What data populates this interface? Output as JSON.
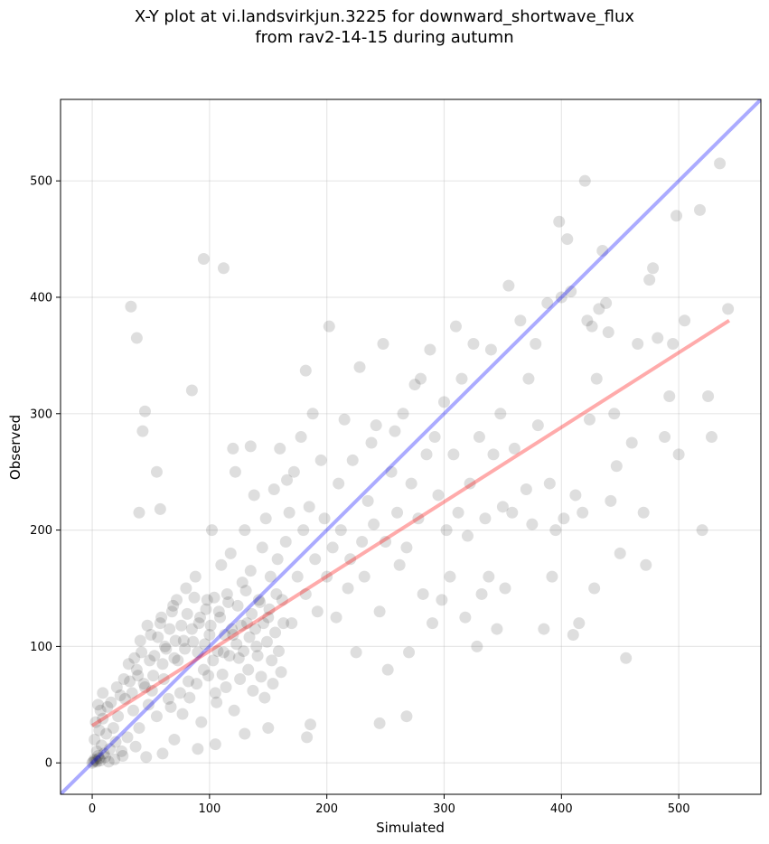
{
  "chart_data": {
    "type": "scatter",
    "title_line1": "X-Y plot at vi.landsvirkjun.3225 for downward_shortwave_flux",
    "title_line2": "from rav2-14-15 during autumn",
    "xlabel": "Simulated",
    "ylabel": "Observed",
    "xlim": [
      -27,
      570
    ],
    "ylim": [
      -27,
      570
    ],
    "xticks": [
      0,
      100,
      200,
      300,
      400,
      500
    ],
    "yticks": [
      0,
      100,
      200,
      300,
      400,
      500
    ],
    "grid": true,
    "colors": {
      "points": "#000000",
      "one_to_one": "#0000ff",
      "fit": "#ff0000"
    },
    "one_to_one_line": {
      "slope": 1,
      "intercept": 0
    },
    "fit_line": {
      "x": [
        0,
        543
      ],
      "y": [
        32,
        380
      ]
    },
    "points": [
      [
        0,
        0
      ],
      [
        1,
        1
      ],
      [
        2,
        3
      ],
      [
        3,
        2
      ],
      [
        5,
        6
      ],
      [
        4,
        10
      ],
      [
        6,
        4
      ],
      [
        8,
        15
      ],
      [
        2,
        20
      ],
      [
        10,
        8
      ],
      [
        12,
        25
      ],
      [
        15,
        12
      ],
      [
        3,
        35
      ],
      [
        18,
        30
      ],
      [
        20,
        18
      ],
      [
        22,
        40
      ],
      [
        25,
        10
      ],
      [
        5,
        50
      ],
      [
        7,
        45
      ],
      [
        9,
        60
      ],
      [
        28,
        55
      ],
      [
        30,
        22
      ],
      [
        32,
        70
      ],
      [
        35,
        45
      ],
      [
        38,
        80
      ],
      [
        40,
        30
      ],
      [
        42,
        95
      ],
      [
        45,
        65
      ],
      [
        48,
        50
      ],
      [
        50,
        110
      ],
      [
        52,
        75
      ],
      [
        55,
        40
      ],
      [
        58,
        120
      ],
      [
        60,
        85
      ],
      [
        62,
        100
      ],
      [
        65,
        55
      ],
      [
        68,
        130
      ],
      [
        70,
        90
      ],
      [
        72,
        140
      ],
      [
        75,
        60
      ],
      [
        78,
        105
      ],
      [
        80,
        150
      ],
      [
        82,
        70
      ],
      [
        85,
        115
      ],
      [
        88,
        160
      ],
      [
        90,
        95
      ],
      [
        92,
        125
      ],
      [
        95,
        80
      ],
      [
        98,
        140
      ],
      [
        100,
        110
      ],
      [
        102,
        200
      ],
      [
        105,
        60
      ],
      [
        108,
        130
      ],
      [
        110,
        170
      ],
      [
        112,
        95
      ],
      [
        115,
        145
      ],
      [
        118,
        180
      ],
      [
        120,
        110
      ],
      [
        122,
        250
      ],
      [
        125,
        90
      ],
      [
        128,
        155
      ],
      [
        130,
        200
      ],
      [
        132,
        120
      ],
      [
        135,
        165
      ],
      [
        138,
        230
      ],
      [
        140,
        100
      ],
      [
        142,
        140
      ],
      [
        145,
        185
      ],
      [
        148,
        210
      ],
      [
        150,
        125
      ],
      [
        152,
        160
      ],
      [
        155,
        235
      ],
      [
        158,
        175
      ],
      [
        160,
        270
      ],
      [
        162,
        140
      ],
      [
        165,
        190
      ],
      [
        168,
        215
      ],
      [
        170,
        120
      ],
      [
        172,
        250
      ],
      [
        175,
        160
      ],
      [
        178,
        280
      ],
      [
        180,
        200
      ],
      [
        182,
        145
      ],
      [
        185,
        220
      ],
      [
        188,
        300
      ],
      [
        190,
        175
      ],
      [
        192,
        130
      ],
      [
        195,
        260
      ],
      [
        198,
        210
      ],
      [
        200,
        160
      ],
      [
        202,
        375
      ],
      [
        205,
        185
      ],
      [
        208,
        125
      ],
      [
        210,
        240
      ],
      [
        212,
        200
      ],
      [
        215,
        295
      ],
      [
        218,
        150
      ],
      [
        220,
        175
      ],
      [
        222,
        260
      ],
      [
        225,
        95
      ],
      [
        228,
        340
      ],
      [
        230,
        190
      ],
      [
        232,
        160
      ],
      [
        235,
        225
      ],
      [
        238,
        275
      ],
      [
        240,
        205
      ],
      [
        242,
        290
      ],
      [
        245,
        130
      ],
      [
        248,
        360
      ],
      [
        250,
        190
      ],
      [
        252,
        80
      ],
      [
        255,
        250
      ],
      [
        258,
        285
      ],
      [
        260,
        215
      ],
      [
        262,
        170
      ],
      [
        265,
        300
      ],
      [
        268,
        185
      ],
      [
        270,
        95
      ],
      [
        272,
        240
      ],
      [
        275,
        325
      ],
      [
        278,
        210
      ],
      [
        280,
        330
      ],
      [
        282,
        145
      ],
      [
        285,
        265
      ],
      [
        288,
        355
      ],
      [
        290,
        120
      ],
      [
        292,
        280
      ],
      [
        295,
        230
      ],
      [
        298,
        140
      ],
      [
        300,
        310
      ],
      [
        302,
        200
      ],
      [
        305,
        160
      ],
      [
        308,
        265
      ],
      [
        310,
        375
      ],
      [
        312,
        215
      ],
      [
        315,
        330
      ],
      [
        318,
        125
      ],
      [
        320,
        195
      ],
      [
        322,
        240
      ],
      [
        325,
        360
      ],
      [
        328,
        100
      ],
      [
        330,
        280
      ],
      [
        332,
        145
      ],
      [
        335,
        210
      ],
      [
        338,
        160
      ],
      [
        340,
        355
      ],
      [
        342,
        265
      ],
      [
        345,
        115
      ],
      [
        348,
        300
      ],
      [
        350,
        220
      ],
      [
        352,
        150
      ],
      [
        355,
        410
      ],
      [
        358,
        215
      ],
      [
        360,
        270
      ],
      [
        365,
        380
      ],
      [
        370,
        235
      ],
      [
        372,
        330
      ],
      [
        375,
        205
      ],
      [
        378,
        360
      ],
      [
        380,
        290
      ],
      [
        385,
        115
      ],
      [
        388,
        395
      ],
      [
        390,
        240
      ],
      [
        392,
        160
      ],
      [
        395,
        200
      ],
      [
        398,
        465
      ],
      [
        400,
        400
      ],
      [
        402,
        210
      ],
      [
        405,
        450
      ],
      [
        408,
        405
      ],
      [
        410,
        110
      ],
      [
        412,
        230
      ],
      [
        415,
        120
      ],
      [
        418,
        215
      ],
      [
        420,
        500
      ],
      [
        422,
        380
      ],
      [
        424,
        295
      ],
      [
        426,
        375
      ],
      [
        428,
        150
      ],
      [
        430,
        330
      ],
      [
        432,
        390
      ],
      [
        435,
        440
      ],
      [
        438,
        395
      ],
      [
        440,
        370
      ],
      [
        442,
        225
      ],
      [
        445,
        300
      ],
      [
        447,
        255
      ],
      [
        450,
        180
      ],
      [
        455,
        90
      ],
      [
        460,
        275
      ],
      [
        465,
        360
      ],
      [
        470,
        215
      ],
      [
        472,
        170
      ],
      [
        475,
        415
      ],
      [
        478,
        425
      ],
      [
        482,
        365
      ],
      [
        488,
        280
      ],
      [
        492,
        315
      ],
      [
        495,
        360
      ],
      [
        498,
        470
      ],
      [
        500,
        265
      ],
      [
        505,
        380
      ],
      [
        518,
        475
      ],
      [
        520,
        200
      ],
      [
        525,
        315
      ],
      [
        528,
        280
      ],
      [
        535,
        515
      ],
      [
        542,
        390
      ],
      [
        33,
        392
      ],
      [
        38,
        365
      ],
      [
        95,
        433
      ],
      [
        112,
        425
      ],
      [
        40,
        215
      ],
      [
        43,
        285
      ],
      [
        45,
        302
      ],
      [
        55,
        250
      ],
      [
        58,
        218
      ],
      [
        85,
        320
      ],
      [
        120,
        270
      ],
      [
        135,
        272
      ],
      [
        182,
        337
      ],
      [
        166,
        243
      ],
      [
        186,
        33
      ],
      [
        245,
        34
      ],
      [
        268,
        40
      ],
      [
        183,
        22
      ],
      [
        90,
        12
      ],
      [
        105,
        16
      ],
      [
        130,
        25
      ],
      [
        150,
        30
      ],
      [
        70,
        20
      ],
      [
        60,
        8
      ],
      [
        46,
        5
      ],
      [
        37,
        14
      ],
      [
        26,
        6
      ],
      [
        19,
        3
      ],
      [
        14,
        1
      ],
      [
        11,
        5
      ],
      [
        7,
        2
      ],
      [
        4,
        1
      ],
      [
        6,
        28
      ],
      [
        9,
        38
      ],
      [
        13,
        48
      ],
      [
        16,
        52
      ],
      [
        21,
        65
      ],
      [
        24,
        58
      ],
      [
        27,
        72
      ],
      [
        31,
        85
      ],
      [
        34,
        60
      ],
      [
        36,
        90
      ],
      [
        39,
        75
      ],
      [
        41,
        105
      ],
      [
        44,
        68
      ],
      [
        47,
        118
      ],
      [
        49,
        88
      ],
      [
        51,
        62
      ],
      [
        53,
        92
      ],
      [
        56,
        108
      ],
      [
        59,
        125
      ],
      [
        61,
        72
      ],
      [
        63,
        98
      ],
      [
        66,
        115
      ],
      [
        67,
        48
      ],
      [
        69,
        135
      ],
      [
        71,
        105
      ],
      [
        73,
        88
      ],
      [
        76,
        118
      ],
      [
        77,
        42
      ],
      [
        79,
        98
      ],
      [
        81,
        128
      ],
      [
        83,
        56
      ],
      [
        86,
        104
      ],
      [
        87,
        142
      ],
      [
        89,
        68
      ],
      [
        91,
        120
      ],
      [
        93,
        35
      ],
      [
        96,
        102
      ],
      [
        97,
        132
      ],
      [
        99,
        75
      ],
      [
        101,
        118
      ],
      [
        103,
        88
      ],
      [
        104,
        142
      ],
      [
        106,
        52
      ],
      [
        107,
        96
      ],
      [
        109,
        125
      ],
      [
        111,
        76
      ],
      [
        113,
        110
      ],
      [
        114,
        65
      ],
      [
        116,
        138
      ],
      [
        117,
        92
      ],
      [
        119,
        115
      ],
      [
        121,
        45
      ],
      [
        123,
        102
      ],
      [
        124,
        135
      ],
      [
        126,
        72
      ],
      [
        127,
        118
      ],
      [
        129,
        96
      ],
      [
        131,
        148
      ],
      [
        133,
        80
      ],
      [
        134,
        108
      ],
      [
        136,
        128
      ],
      [
        137,
        62
      ],
      [
        139,
        115
      ],
      [
        141,
        92
      ],
      [
        143,
        138
      ],
      [
        144,
        74
      ],
      [
        146,
        120
      ],
      [
        147,
        56
      ],
      [
        149,
        104
      ],
      [
        151,
        132
      ],
      [
        153,
        88
      ],
      [
        154,
        68
      ],
      [
        156,
        112
      ],
      [
        157,
        145
      ],
      [
        159,
        96
      ],
      [
        161,
        78
      ],
      [
        163,
        120
      ]
    ]
  }
}
